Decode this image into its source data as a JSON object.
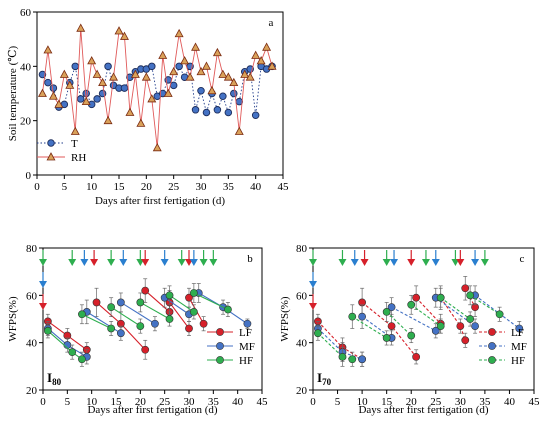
{
  "chart_data": [
    {
      "panel": "a",
      "type": "line",
      "panel_label": "a",
      "xlabel": "Days after first fertigation (d)",
      "ylabel": "Soil temperature (℃)",
      "xlim": [
        0,
        45
      ],
      "ylim": [
        0,
        60
      ],
      "xticks": [
        "0",
        "5",
        "10",
        "15",
        "20",
        "25",
        "30",
        "35",
        "40",
        "45"
      ],
      "yticks": [
        "0",
        "20",
        "40",
        "60"
      ],
      "legend_position": "bottom-left",
      "series": [
        {
          "name": "T",
          "marker": "circle",
          "line": "dotted",
          "color": "#1f3b8a",
          "fill": "#4472c4",
          "x": [
            1,
            2,
            3,
            4,
            5,
            6,
            7,
            8,
            9,
            10,
            11,
            12,
            13,
            14,
            15,
            16,
            17,
            18,
            19,
            20,
            21,
            22,
            23,
            24,
            25,
            26,
            27,
            28,
            29,
            30,
            31,
            32,
            33,
            34,
            35,
            36,
            37,
            38,
            39,
            40,
            41,
            42,
            43
          ],
          "y": [
            37,
            34,
            32,
            25,
            26,
            34,
            40,
            28,
            30,
            26,
            28,
            30,
            40,
            33,
            32,
            32,
            36,
            38,
            39,
            39,
            40,
            29,
            30,
            35,
            33,
            40,
            36,
            40,
            24,
            31,
            23,
            30,
            24,
            29,
            23,
            30,
            27,
            38,
            39,
            22,
            40,
            39,
            40
          ]
        },
        {
          "name": "RH",
          "marker": "triangle",
          "line": "solid",
          "color": "#e05a5a",
          "fill": "#d9a15a",
          "x": [
            1,
            2,
            3,
            4,
            5,
            6,
            7,
            8,
            9,
            10,
            11,
            12,
            13,
            14,
            15,
            16,
            17,
            18,
            19,
            20,
            21,
            22,
            23,
            24,
            25,
            26,
            27,
            28,
            29,
            30,
            31,
            32,
            33,
            34,
            35,
            36,
            37,
            38,
            39,
            40,
            41,
            42,
            43
          ],
          "y": [
            30,
            46,
            29,
            26,
            37,
            33,
            16,
            54,
            27,
            42,
            37,
            34,
            20,
            36,
            53,
            51,
            23,
            37,
            19,
            36,
            28,
            10,
            44,
            30,
            38,
            52,
            42,
            36,
            47,
            38,
            40,
            31,
            45,
            37,
            36,
            34,
            16,
            37,
            36,
            44,
            42,
            47,
            40
          ]
        }
      ]
    },
    {
      "panel": "b",
      "type": "line",
      "panel_label": "b",
      "treatment_label": "I80",
      "xlabel": "Days after first fertigation (d)",
      "ylabel": "WFPS(%)",
      "xlim": [
        0,
        45
      ],
      "ylim": [
        20,
        80
      ],
      "xticks": [
        "0",
        "5",
        "10",
        "15",
        "20",
        "25",
        "30",
        "35",
        "40",
        "45"
      ],
      "yticks": [
        "20",
        "40",
        "60",
        "80"
      ],
      "legend_position": "bottom-right",
      "event_arrows": [
        {
          "x": 0,
          "color": "#2eae4f"
        },
        {
          "x": 0,
          "color": "#2a7fcf"
        },
        {
          "x": 0,
          "color": "#d6202a"
        },
        {
          "x": 6,
          "color": "#2eae4f"
        },
        {
          "x": 8.5,
          "color": "#2a7fcf"
        },
        {
          "x": 10.5,
          "color": "#d6202a"
        },
        {
          "x": 14,
          "color": "#2eae4f"
        },
        {
          "x": 16.5,
          "color": "#2a7fcf"
        },
        {
          "x": 20,
          "color": "#2eae4f"
        },
        {
          "x": 21,
          "color": "#d6202a"
        },
        {
          "x": 25,
          "color": "#2a7fcf"
        },
        {
          "x": 28.5,
          "color": "#2eae4f"
        },
        {
          "x": 30,
          "color": "#d6202a"
        },
        {
          "x": 31,
          "color": "#2a7fcf"
        },
        {
          "x": 33,
          "color": "#2eae4f"
        },
        {
          "x": 35,
          "color": "#2eae4f"
        }
      ],
      "series": [
        {
          "name": "LF",
          "color": "#d6202a",
          "line": "solid",
          "segments": [
            {
              "x": [
                1,
                5,
                9
              ],
              "y": [
                49,
                43,
                37
              ],
              "err": [
                3,
                3,
                3
              ]
            },
            {
              "x": [
                11,
                16,
                21
              ],
              "y": [
                57,
                48,
                37
              ],
              "err": [
                6,
                5,
                4
              ]
            },
            {
              "x": [
                21,
                26
              ],
              "y": [
                62,
                53
              ],
              "err": [
                5,
                4
              ]
            },
            {
              "x": [
                26,
                30
              ],
              "y": [
                57,
                46
              ],
              "err": [
                5,
                3
              ]
            },
            {
              "x": [
                30,
                33
              ],
              "y": [
                59,
                48
              ],
              "err": [
                4,
                3
              ]
            }
          ]
        },
        {
          "name": "MF",
          "color": "#4472c4",
          "line": "solid",
          "segments": [
            {
              "x": [
                1,
                5,
                9
              ],
              "y": [
                46,
                39,
                34
              ],
              "err": [
                3,
                3,
                3
              ]
            },
            {
              "x": [
                9,
                16
              ],
              "y": [
                53,
                44
              ],
              "err": [
                5,
                3
              ]
            },
            {
              "x": [
                16,
                23
              ],
              "y": [
                57,
                48
              ],
              "err": [
                4,
                3
              ]
            },
            {
              "x": [
                25,
                30
              ],
              "y": [
                59,
                52
              ],
              "err": [
                4,
                3
              ]
            },
            {
              "x": [
                32,
                37,
                42
              ],
              "y": [
                61,
                55,
                48
              ],
              "err": [
                4,
                3,
                2
              ]
            }
          ]
        },
        {
          "name": "HF",
          "color": "#2eae4f",
          "line": "solid",
          "segments": [
            {
              "x": [
                1,
                6,
                8
              ],
              "y": [
                45,
                36,
                33
              ],
              "err": [
                3,
                3,
                3
              ]
            },
            {
              "x": [
                8,
                14
              ],
              "y": [
                52,
                46
              ],
              "err": [
                4,
                3
              ]
            },
            {
              "x": [
                14,
                20
              ],
              "y": [
                55,
                47
              ],
              "err": [
                4,
                3
              ]
            },
            {
              "x": [
                20,
                26
              ],
              "y": [
                57,
                50
              ],
              "err": [
                4,
                3
              ]
            },
            {
              "x": [
                26,
                31
              ],
              "y": [
                60,
                53
              ],
              "err": [
                4,
                3
              ]
            },
            {
              "x": [
                31,
                38
              ],
              "y": [
                61,
                54
              ],
              "err": [
                4,
                3
              ]
            }
          ]
        }
      ]
    },
    {
      "panel": "c",
      "type": "line",
      "panel_label": "c",
      "treatment_label": "I70",
      "xlabel": "Days after first fertigation (d)",
      "ylabel": "WFPS(%)",
      "xlim": [
        0,
        45
      ],
      "ylim": [
        20,
        80
      ],
      "xticks": [
        "0",
        "5",
        "10",
        "15",
        "20",
        "25",
        "30",
        "35",
        "40",
        "45"
      ],
      "yticks": [
        "20",
        "40",
        "60",
        "80"
      ],
      "legend_position": "bottom-right",
      "event_arrows": [
        {
          "x": 0,
          "color": "#2eae4f"
        },
        {
          "x": 0,
          "color": "#2a7fcf"
        },
        {
          "x": 0,
          "color": "#d6202a"
        },
        {
          "x": 6,
          "color": "#2eae4f"
        },
        {
          "x": 8.5,
          "color": "#2a7fcf"
        },
        {
          "x": 10.5,
          "color": "#d6202a"
        },
        {
          "x": 15,
          "color": "#2eae4f"
        },
        {
          "x": 16.5,
          "color": "#2a7fcf"
        },
        {
          "x": 20,
          "color": "#d6202a"
        },
        {
          "x": 23,
          "color": "#2eae4f"
        },
        {
          "x": 25,
          "color": "#2a7fcf"
        },
        {
          "x": 29,
          "color": "#2eae4f"
        },
        {
          "x": 30,
          "color": "#d6202a"
        },
        {
          "x": 33,
          "color": "#2a7fcf"
        },
        {
          "x": 35,
          "color": "#2eae4f"
        }
      ],
      "series": [
        {
          "name": "LF",
          "color": "#d6202a",
          "line": "dashed",
          "segments": [
            {
              "x": [
                1,
                6,
                10
              ],
              "y": [
                49,
                38,
                33
              ],
              "err": [
                3,
                4,
                3
              ]
            },
            {
              "x": [
                10,
                16,
                21
              ],
              "y": [
                57,
                47,
                34
              ],
              "err": [
                6,
                5,
                3
              ]
            },
            {
              "x": [
                21,
                26
              ],
              "y": [
                59,
                48
              ],
              "err": [
                5,
                4
              ]
            },
            {
              "x": [
                26,
                30,
                31
              ],
              "y": [
                59,
                47,
                41
              ],
              "err": [
                5,
                3,
                3
              ]
            },
            {
              "x": [
                31,
                33
              ],
              "y": [
                63,
                55
              ],
              "err": [
                5,
                4
              ]
            }
          ]
        },
        {
          "name": "MF",
          "color": "#4472c4",
          "line": "dashed",
          "segments": [
            {
              "x": [
                1,
                6,
                10
              ],
              "y": [
                46,
                36,
                33
              ],
              "err": [
                3,
                4,
                3
              ]
            },
            {
              "x": [
                10,
                16
              ],
              "y": [
                51,
                42
              ],
              "err": [
                5,
                3
              ]
            },
            {
              "x": [
                16,
                25
              ],
              "y": [
                55,
                45
              ],
              "err": [
                4,
                3
              ]
            },
            {
              "x": [
                25,
                33
              ],
              "y": [
                59,
                47
              ],
              "err": [
                4,
                3
              ]
            },
            {
              "x": [
                33,
                42
              ],
              "y": [
                60,
                46
              ],
              "err": [
                4,
                3
              ]
            }
          ]
        },
        {
          "name": "HF",
          "color": "#2eae4f",
          "line": "dashed",
          "segments": [
            {
              "x": [
                1,
                6,
                8
              ],
              "y": [
                44,
                34,
                33
              ],
              "err": [
                3,
                4,
                3
              ]
            },
            {
              "x": [
                8,
                15
              ],
              "y": [
                51,
                42
              ],
              "err": [
                5,
                3
              ]
            },
            {
              "x": [
                15,
                20
              ],
              "y": [
                53,
                43
              ],
              "err": [
                4,
                3
              ]
            },
            {
              "x": [
                20,
                26
              ],
              "y": [
                56,
                47
              ],
              "err": [
                4,
                3
              ]
            },
            {
              "x": [
                26,
                32
              ],
              "y": [
                59,
                50
              ],
              "err": [
                4,
                3
              ]
            },
            {
              "x": [
                32,
                38
              ],
              "y": [
                60,
                52
              ],
              "err": [
                4,
                3
              ]
            }
          ]
        }
      ]
    }
  ]
}
